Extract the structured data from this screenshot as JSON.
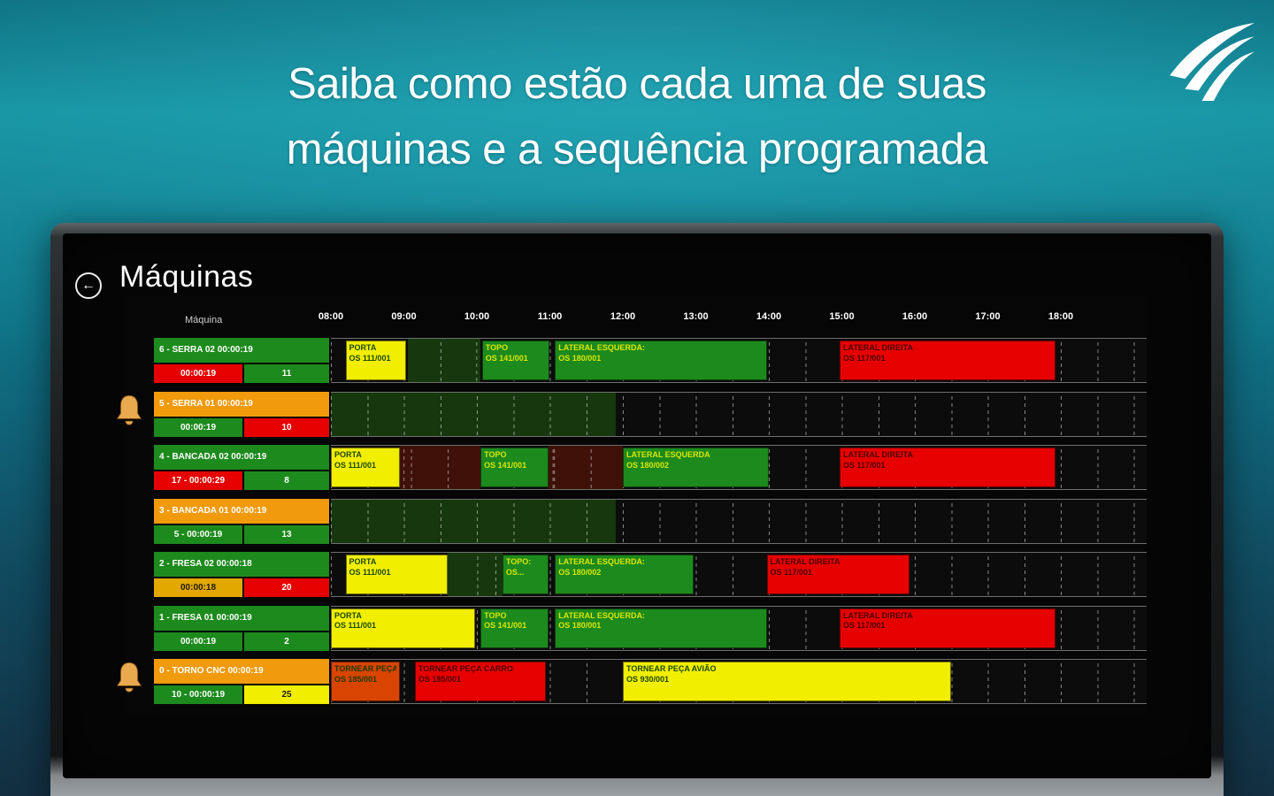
{
  "page": {
    "headline_line1": "Saiba como estão cada uma de suas",
    "headline_line2": "máquinas e a sequência programada"
  },
  "screen": {
    "title": "Máquinas",
    "machine_column_label": "Máquina",
    "back_icon": "←",
    "time_labels": [
      "08:00",
      "09:00",
      "10:00",
      "11:00",
      "12:00",
      "13:00",
      "14:00",
      "15:00",
      "16:00",
      "17:00",
      "18:00"
    ]
  },
  "icons": {
    "back": "back-arrow-icon",
    "alert": "alert-bell-icon",
    "logo": "brand-swoosh-logo"
  },
  "colors": {
    "green": "#1d8a1d",
    "orange": "#f09a0c",
    "red": "#e60000",
    "yellow": "#f2ee00",
    "amber": "#e2a800",
    "orangered": "#d94500",
    "cell_green": "#17380e",
    "cell_red": "#3f1109"
  },
  "bar_text_colors": {
    "yellow": "#1c4a00",
    "green": "#d8e600",
    "red": "#4d0000",
    "orangered": "#1b3a00",
    "amber": "#201c00"
  },
  "machines": [
    {
      "name": "6 - SERRA 02 00:00:19",
      "header_color": "green",
      "bell": false,
      "status_left": {
        "text": "00:00:19",
        "color": "red"
      },
      "status_right": {
        "text": "11",
        "color": "green"
      },
      "fills": [
        {
          "start": 9.05,
          "end": 10.05,
          "color": "cell_green"
        }
      ],
      "bars": [
        {
          "start": 8.2,
          "end": 9.03,
          "color": "yellow",
          "line1": "PORTA",
          "line2": "OS 111/001"
        },
        {
          "start": 10.07,
          "end": 11.0,
          "color": "green",
          "line1": "TOPO",
          "line2": "OS 141/001"
        },
        {
          "start": 11.07,
          "end": 13.97,
          "color": "green",
          "line1": "LATERAL ESQUERDA:",
          "line2": "OS 180/001"
        },
        {
          "start": 14.97,
          "end": 17.93,
          "color": "red",
          "line1": "LATERAL DIREITA",
          "line2": "OS 117/001"
        }
      ]
    },
    {
      "name": "5 - SERRA 01 00:00:19",
      "header_color": "orange",
      "bell": true,
      "status_left": {
        "text": "00:00:19",
        "color": "green"
      },
      "status_right": {
        "text": "10",
        "color": "red"
      },
      "fills": [
        {
          "start": 8.0,
          "end": 11.9,
          "color": "cell_green"
        }
      ],
      "bars": []
    },
    {
      "name": "4 - BANCADA 02 00:00:19",
      "header_color": "green",
      "bell": false,
      "status_left": {
        "text": "17 - 00:00:29",
        "color": "red"
      },
      "status_right": {
        "text": "8",
        "color": "green"
      },
      "fills": [
        {
          "start": 8.95,
          "end": 10.05,
          "color": "cell_red"
        },
        {
          "start": 10.98,
          "end": 12.0,
          "color": "cell_red"
        }
      ],
      "bars": [
        {
          "start": 8.0,
          "end": 8.95,
          "color": "yellow",
          "line1": "PORTA",
          "line2": "OS 111/001"
        },
        {
          "start": 10.05,
          "end": 10.98,
          "color": "green",
          "line1": "TOPO",
          "line2": "OS 141/001"
        },
        {
          "start": 12.0,
          "end": 14.0,
          "color": "green",
          "line1": "LATERAL ESQUERDA",
          "line2": "OS 180/002"
        },
        {
          "start": 14.97,
          "end": 17.93,
          "color": "red",
          "line1": "LATERAL DIREITA",
          "line2": "OS 117/001"
        }
      ]
    },
    {
      "name": "3 - BANCADA 01 00:00:19",
      "header_color": "orange",
      "bell": false,
      "status_left": {
        "text": "5 - 00:00:19",
        "color": "green"
      },
      "status_right": {
        "text": "13",
        "color": "green"
      },
      "fills": [
        {
          "start": 8.0,
          "end": 11.9,
          "color": "cell_green"
        }
      ],
      "bars": []
    },
    {
      "name": "2 - FRESA 02 00:00:18",
      "header_color": "green",
      "bell": false,
      "status_left": {
        "text": "00:00:18",
        "color": "amber"
      },
      "status_right": {
        "text": "20",
        "color": "red"
      },
      "fills": [
        {
          "start": 9.6,
          "end": 10.35,
          "color": "cell_green"
        }
      ],
      "bars": [
        {
          "start": 8.2,
          "end": 9.6,
          "color": "yellow",
          "line1": "PORTA",
          "line2": "OS 111/001"
        },
        {
          "start": 10.35,
          "end": 10.98,
          "color": "green",
          "line1": "TOPO:",
          "line2": "OS..."
        },
        {
          "start": 11.07,
          "end": 12.97,
          "color": "green",
          "line1": "LATERAL ESQUERDA:",
          "line2": "OS 180/002"
        },
        {
          "start": 13.97,
          "end": 15.93,
          "color": "red",
          "line1": "LATERAL DIREITA",
          "line2": "OS 117/001"
        }
      ]
    },
    {
      "name": "1 - FRESA 01 00:00:19",
      "header_color": "green",
      "bell": false,
      "status_left": {
        "text": "00:00:19",
        "color": "green"
      },
      "status_right": {
        "text": "2",
        "color": "green"
      },
      "fills": [],
      "bars": [
        {
          "start": 8.0,
          "end": 9.97,
          "color": "yellow",
          "line1": "PORTA",
          "line2": "OS 111/001"
        },
        {
          "start": 10.05,
          "end": 10.98,
          "color": "green",
          "line1": "TOPO",
          "line2": "OS 141/001"
        },
        {
          "start": 11.07,
          "end": 13.97,
          "color": "green",
          "line1": "LATERAL ESQUERDA:",
          "line2": "OS 180/001"
        },
        {
          "start": 14.97,
          "end": 17.93,
          "color": "red",
          "line1": "LATERAL DIREITA",
          "line2": "OS 117/001"
        }
      ]
    },
    {
      "name": "0 - TORNO CNC 00:00:19",
      "header_color": "orange",
      "bell": true,
      "status_left": {
        "text": "10 - 00:00:19",
        "color": "green"
      },
      "status_right": {
        "text": "25",
        "color": "yellow"
      },
      "fills": [],
      "bars": [
        {
          "start": 8.0,
          "end": 8.95,
          "color": "orangered",
          "line1": "TORNEAR PEÇA...",
          "line2": "OS 185/001"
        },
        {
          "start": 9.15,
          "end": 10.95,
          "color": "red",
          "line1": "TORNEAR PEÇA CARRO",
          "line2": "OS 185/001"
        },
        {
          "start": 12.0,
          "end": 16.5,
          "color": "yellow",
          "line1": "TORNEAR PEÇA AVIÃO",
          "line2": "OS 930/001"
        }
      ]
    }
  ]
}
